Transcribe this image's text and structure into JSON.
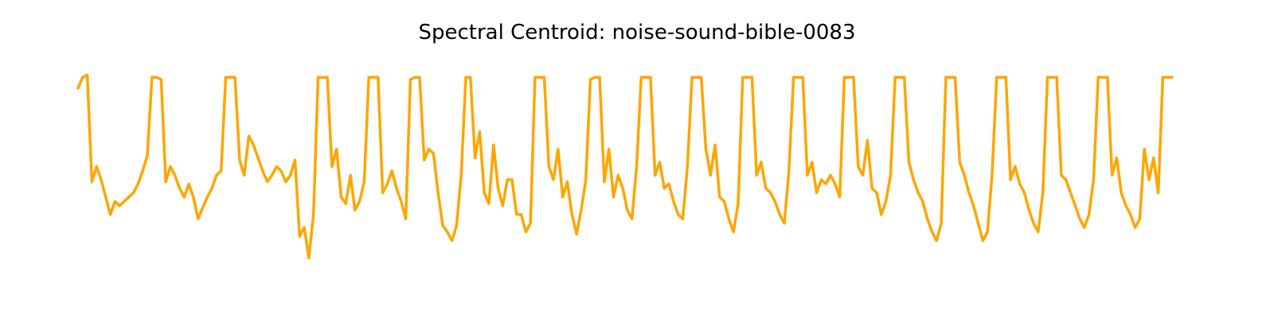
{
  "chart_data": {
    "type": "line",
    "title": "Spectral Centroid: noise-sound-bible-0083",
    "xlabel": "",
    "ylabel": "",
    "axes_visible": false,
    "grid": false,
    "ylim": [
      0,
      1
    ],
    "series": [
      {
        "color": "#ffa500",
        "values": [
          0.88,
          0.93,
          0.94,
          0.45,
          0.52,
          0.46,
          0.38,
          0.3,
          0.36,
          0.34,
          0.36,
          0.38,
          0.4,
          0.44,
          0.5,
          0.57,
          0.93,
          0.93,
          0.92,
          0.45,
          0.52,
          0.48,
          0.42,
          0.38,
          0.44,
          0.38,
          0.28,
          0.33,
          0.38,
          0.42,
          0.48,
          0.5,
          0.93,
          0.93,
          0.93,
          0.55,
          0.48,
          0.66,
          0.62,
          0.56,
          0.5,
          0.45,
          0.48,
          0.52,
          0.5,
          0.45,
          0.48,
          0.55,
          0.2,
          0.24,
          0.1,
          0.3,
          0.93,
          0.93,
          0.93,
          0.52,
          0.6,
          0.38,
          0.35,
          0.48,
          0.32,
          0.36,
          0.45,
          0.93,
          0.93,
          0.93,
          0.4,
          0.44,
          0.5,
          0.42,
          0.36,
          0.28,
          0.92,
          0.93,
          0.93,
          0.55,
          0.6,
          0.58,
          0.4,
          0.25,
          0.22,
          0.18,
          0.25,
          0.48,
          0.93,
          0.93,
          0.56,
          0.68,
          0.4,
          0.35,
          0.62,
          0.42,
          0.34,
          0.46,
          0.46,
          0.3,
          0.3,
          0.22,
          0.26,
          0.93,
          0.93,
          0.93,
          0.52,
          0.46,
          0.6,
          0.38,
          0.45,
          0.3,
          0.21,
          0.32,
          0.46,
          0.92,
          0.93,
          0.93,
          0.45,
          0.6,
          0.38,
          0.48,
          0.42,
          0.32,
          0.28,
          0.52,
          0.93,
          0.93,
          0.93,
          0.48,
          0.54,
          0.42,
          0.44,
          0.36,
          0.3,
          0.28,
          0.52,
          0.93,
          0.93,
          0.93,
          0.6,
          0.48,
          0.62,
          0.38,
          0.36,
          0.28,
          0.22,
          0.35,
          0.93,
          0.93,
          0.93,
          0.48,
          0.54,
          0.42,
          0.4,
          0.36,
          0.3,
          0.26,
          0.5,
          0.93,
          0.93,
          0.93,
          0.48,
          0.54,
          0.4,
          0.46,
          0.44,
          0.48,
          0.44,
          0.38,
          0.93,
          0.93,
          0.93,
          0.52,
          0.48,
          0.64,
          0.42,
          0.4,
          0.3,
          0.36,
          0.48,
          0.93,
          0.93,
          0.93,
          0.54,
          0.46,
          0.4,
          0.36,
          0.28,
          0.22,
          0.18,
          0.26,
          0.93,
          0.93,
          0.93,
          0.54,
          0.48,
          0.4,
          0.34,
          0.26,
          0.18,
          0.22,
          0.48,
          0.93,
          0.93,
          0.93,
          0.46,
          0.52,
          0.44,
          0.4,
          0.32,
          0.26,
          0.22,
          0.4,
          0.93,
          0.93,
          0.93,
          0.48,
          0.46,
          0.4,
          0.34,
          0.28,
          0.24,
          0.3,
          0.46,
          0.93,
          0.93,
          0.93,
          0.48,
          0.56,
          0.4,
          0.34,
          0.3,
          0.24,
          0.28,
          0.6,
          0.46,
          0.56,
          0.4,
          0.93,
          0.93,
          0.93
        ]
      }
    ]
  }
}
